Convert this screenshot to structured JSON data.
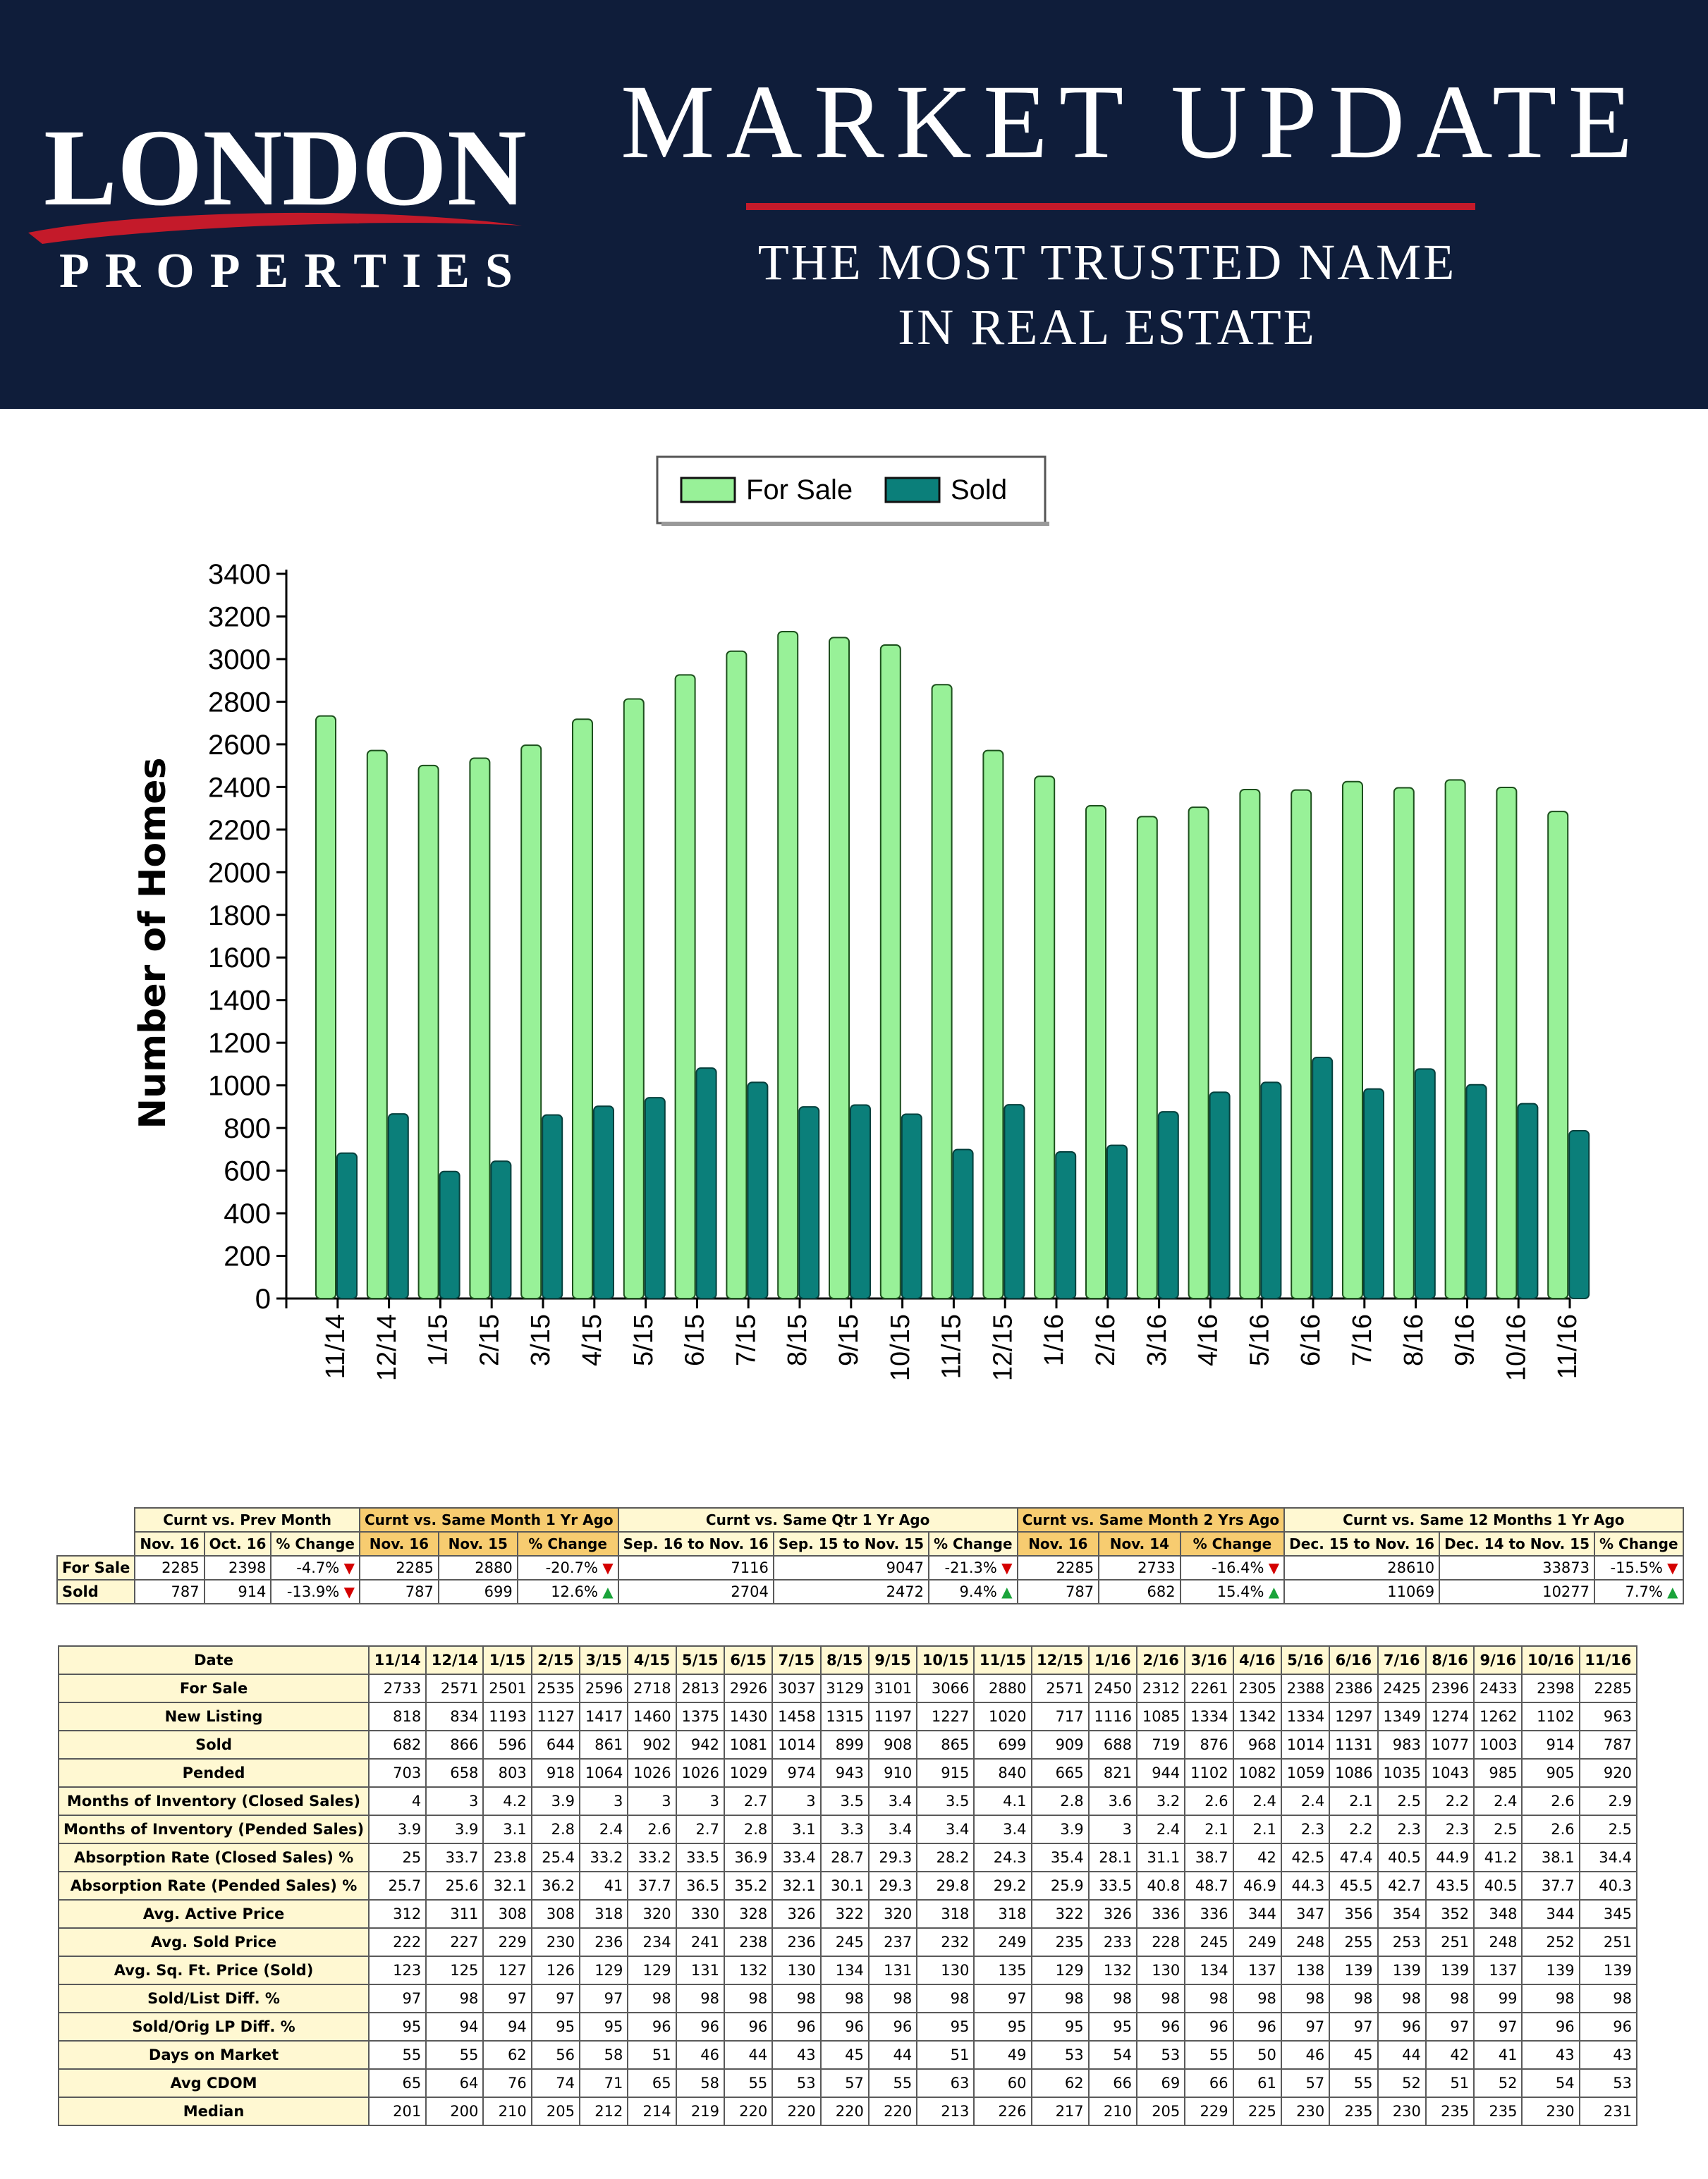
{
  "header": {
    "logo_main": "LONDON",
    "logo_sub": "PROPERTIES",
    "title": "MARKET UPDATE",
    "tagline_line1": "THE MOST TRUSTED NAME",
    "tagline_line2": "IN REAL ESTATE",
    "colors": {
      "banner": "#0f1d3a",
      "accent": "#c41a2a",
      "text": "#ffffff"
    }
  },
  "chart_data": {
    "type": "bar",
    "title": "",
    "xlabel": "",
    "ylabel": "Number of Homes",
    "ylim": [
      0,
      3400
    ],
    "yticks": [
      0,
      200,
      400,
      600,
      800,
      1000,
      1200,
      1400,
      1600,
      1800,
      2000,
      2200,
      2400,
      2600,
      2800,
      3000,
      3200,
      3400
    ],
    "legend_position": "top-center",
    "categories": [
      "11/14",
      "12/14",
      "1/15",
      "2/15",
      "3/15",
      "4/15",
      "5/15",
      "6/15",
      "7/15",
      "8/15",
      "9/15",
      "10/15",
      "11/15",
      "12/15",
      "1/16",
      "2/16",
      "3/16",
      "4/16",
      "5/16",
      "6/16",
      "7/16",
      "8/16",
      "9/16",
      "10/16",
      "11/16"
    ],
    "series": [
      {
        "name": "For Sale",
        "color": "#98f198",
        "values": [
          2733,
          2571,
          2501,
          2535,
          2596,
          2718,
          2813,
          2926,
          3037,
          3129,
          3101,
          3066,
          2880,
          2571,
          2450,
          2312,
          2261,
          2305,
          2388,
          2386,
          2425,
          2396,
          2433,
          2398,
          2285
        ]
      },
      {
        "name": "Sold",
        "color": "#0b7f7a",
        "values": [
          682,
          866,
          596,
          644,
          861,
          902,
          942,
          1081,
          1014,
          899,
          908,
          865,
          699,
          909,
          688,
          719,
          876,
          968,
          1014,
          1131,
          983,
          1077,
          1003,
          914,
          787
        ]
      }
    ]
  },
  "summary": {
    "groups": [
      {
        "label": "Curnt vs. Prev Month",
        "highlight": false,
        "cols": [
          "Nov. 16",
          "Oct. 16",
          "% Change"
        ]
      },
      {
        "label": "Curnt vs. Same Month 1 Yr Ago",
        "highlight": true,
        "cols": [
          "Nov. 16",
          "Nov. 15",
          "% Change"
        ]
      },
      {
        "label": "Curnt vs. Same Qtr 1 Yr Ago",
        "highlight": false,
        "cols": [
          "Sep. 16 to Nov. 16",
          "Sep. 15 to Nov. 15",
          "% Change"
        ]
      },
      {
        "label": "Curnt vs. Same Month 2 Yrs Ago",
        "highlight": true,
        "cols": [
          "Nov. 16",
          "Nov. 14",
          "% Change"
        ]
      },
      {
        "label": "Curnt vs. Same 12 Months 1 Yr Ago",
        "highlight": false,
        "cols": [
          "Dec. 15 to Nov. 16",
          "Dec. 14 to Nov. 15",
          "% Change"
        ]
      }
    ],
    "rows": [
      {
        "label": "For Sale",
        "cells": [
          "2285",
          "2398",
          "-4.7%",
          "2285",
          "2880",
          "-20.7%",
          "7116",
          "9047",
          "-21.3%",
          "2285",
          "2733",
          "-16.4%",
          "28610",
          "33873",
          "-15.5%"
        ],
        "trend": "down"
      },
      {
        "label": "Sold",
        "cells": [
          "787",
          "914",
          "-13.9%",
          "787",
          "699",
          "12.6%",
          "2704",
          "2472",
          "9.4%",
          "787",
          "682",
          "15.4%",
          "11069",
          "10277",
          "7.7%"
        ],
        "trends": [
          "down",
          "up",
          "up",
          "up",
          "up"
        ]
      }
    ],
    "arrow_down": "▼",
    "arrow_up": "▲"
  },
  "detail": {
    "corner": "Date",
    "dates": [
      "11/14",
      "12/14",
      "1/15",
      "2/15",
      "3/15",
      "4/15",
      "5/15",
      "6/15",
      "7/15",
      "8/15",
      "9/15",
      "10/15",
      "11/15",
      "12/15",
      "1/16",
      "2/16",
      "3/16",
      "4/16",
      "5/16",
      "6/16",
      "7/16",
      "8/16",
      "9/16",
      "10/16",
      "11/16"
    ],
    "rows": [
      {
        "label": "For Sale",
        "values": [
          "2733",
          "2571",
          "2501",
          "2535",
          "2596",
          "2718",
          "2813",
          "2926",
          "3037",
          "3129",
          "3101",
          "3066",
          "2880",
          "2571",
          "2450",
          "2312",
          "2261",
          "2305",
          "2388",
          "2386",
          "2425",
          "2396",
          "2433",
          "2398",
          "2285"
        ]
      },
      {
        "label": "New Listing",
        "values": [
          "818",
          "834",
          "1193",
          "1127",
          "1417",
          "1460",
          "1375",
          "1430",
          "1458",
          "1315",
          "1197",
          "1227",
          "1020",
          "717",
          "1116",
          "1085",
          "1334",
          "1342",
          "1334",
          "1297",
          "1349",
          "1274",
          "1262",
          "1102",
          "963"
        ]
      },
      {
        "label": "Sold",
        "values": [
          "682",
          "866",
          "596",
          "644",
          "861",
          "902",
          "942",
          "1081",
          "1014",
          "899",
          "908",
          "865",
          "699",
          "909",
          "688",
          "719",
          "876",
          "968",
          "1014",
          "1131",
          "983",
          "1077",
          "1003",
          "914",
          "787"
        ]
      },
      {
        "label": "Pended",
        "values": [
          "703",
          "658",
          "803",
          "918",
          "1064",
          "1026",
          "1026",
          "1029",
          "974",
          "943",
          "910",
          "915",
          "840",
          "665",
          "821",
          "944",
          "1102",
          "1082",
          "1059",
          "1086",
          "1035",
          "1043",
          "985",
          "905",
          "920"
        ]
      },
      {
        "label": "Months of Inventory (Closed Sales)",
        "values": [
          "4",
          "3",
          "4.2",
          "3.9",
          "3",
          "3",
          "3",
          "2.7",
          "3",
          "3.5",
          "3.4",
          "3.5",
          "4.1",
          "2.8",
          "3.6",
          "3.2",
          "2.6",
          "2.4",
          "2.4",
          "2.1",
          "2.5",
          "2.2",
          "2.4",
          "2.6",
          "2.9"
        ]
      },
      {
        "label": "Months of Inventory (Pended Sales)",
        "values": [
          "3.9",
          "3.9",
          "3.1",
          "2.8",
          "2.4",
          "2.6",
          "2.7",
          "2.8",
          "3.1",
          "3.3",
          "3.4",
          "3.4",
          "3.4",
          "3.9",
          "3",
          "2.4",
          "2.1",
          "2.1",
          "2.3",
          "2.2",
          "2.3",
          "2.3",
          "2.5",
          "2.6",
          "2.5"
        ]
      },
      {
        "label": "Absorption Rate (Closed Sales) %",
        "values": [
          "25",
          "33.7",
          "23.8",
          "25.4",
          "33.2",
          "33.2",
          "33.5",
          "36.9",
          "33.4",
          "28.7",
          "29.3",
          "28.2",
          "24.3",
          "35.4",
          "28.1",
          "31.1",
          "38.7",
          "42",
          "42.5",
          "47.4",
          "40.5",
          "44.9",
          "41.2",
          "38.1",
          "34.4"
        ]
      },
      {
        "label": "Absorption Rate (Pended Sales) %",
        "values": [
          "25.7",
          "25.6",
          "32.1",
          "36.2",
          "41",
          "37.7",
          "36.5",
          "35.2",
          "32.1",
          "30.1",
          "29.3",
          "29.8",
          "29.2",
          "25.9",
          "33.5",
          "40.8",
          "48.7",
          "46.9",
          "44.3",
          "45.5",
          "42.7",
          "43.5",
          "40.5",
          "37.7",
          "40.3"
        ]
      },
      {
        "label": "Avg. Active Price",
        "values": [
          "312",
          "311",
          "308",
          "308",
          "318",
          "320",
          "330",
          "328",
          "326",
          "322",
          "320",
          "318",
          "318",
          "322",
          "326",
          "336",
          "336",
          "344",
          "347",
          "356",
          "354",
          "352",
          "348",
          "344",
          "345"
        ]
      },
      {
        "label": "Avg. Sold Price",
        "values": [
          "222",
          "227",
          "229",
          "230",
          "236",
          "234",
          "241",
          "238",
          "236",
          "245",
          "237",
          "232",
          "249",
          "235",
          "233",
          "228",
          "245",
          "249",
          "248",
          "255",
          "253",
          "251",
          "248",
          "252",
          "251"
        ]
      },
      {
        "label": "Avg. Sq. Ft. Price (Sold)",
        "values": [
          "123",
          "125",
          "127",
          "126",
          "129",
          "129",
          "131",
          "132",
          "130",
          "134",
          "131",
          "130",
          "135",
          "129",
          "132",
          "130",
          "134",
          "137",
          "138",
          "139",
          "139",
          "139",
          "137",
          "139",
          "139"
        ]
      },
      {
        "label": "Sold/List Diff. %",
        "values": [
          "97",
          "98",
          "97",
          "97",
          "97",
          "98",
          "98",
          "98",
          "98",
          "98",
          "98",
          "98",
          "97",
          "98",
          "98",
          "98",
          "98",
          "98",
          "98",
          "98",
          "98",
          "98",
          "99",
          "98",
          "98"
        ]
      },
      {
        "label": "Sold/Orig LP Diff. %",
        "values": [
          "95",
          "94",
          "94",
          "95",
          "95",
          "96",
          "96",
          "96",
          "96",
          "96",
          "96",
          "95",
          "95",
          "95",
          "95",
          "96",
          "96",
          "96",
          "97",
          "97",
          "96",
          "97",
          "97",
          "96",
          "96"
        ]
      },
      {
        "label": "Days on Market",
        "values": [
          "55",
          "55",
          "62",
          "56",
          "58",
          "51",
          "46",
          "44",
          "43",
          "45",
          "44",
          "51",
          "49",
          "53",
          "54",
          "53",
          "55",
          "50",
          "46",
          "45",
          "44",
          "42",
          "41",
          "43",
          "43"
        ]
      },
      {
        "label": "Avg CDOM",
        "values": [
          "65",
          "64",
          "76",
          "74",
          "71",
          "65",
          "58",
          "55",
          "53",
          "57",
          "55",
          "63",
          "60",
          "62",
          "66",
          "69",
          "66",
          "61",
          "57",
          "55",
          "52",
          "51",
          "52",
          "54",
          "53"
        ]
      },
      {
        "label": "Median",
        "values": [
          "201",
          "200",
          "210",
          "205",
          "212",
          "214",
          "219",
          "220",
          "220",
          "220",
          "220",
          "213",
          "226",
          "217",
          "210",
          "205",
          "229",
          "225",
          "230",
          "235",
          "230",
          "235",
          "235",
          "230",
          "231"
        ]
      }
    ]
  }
}
